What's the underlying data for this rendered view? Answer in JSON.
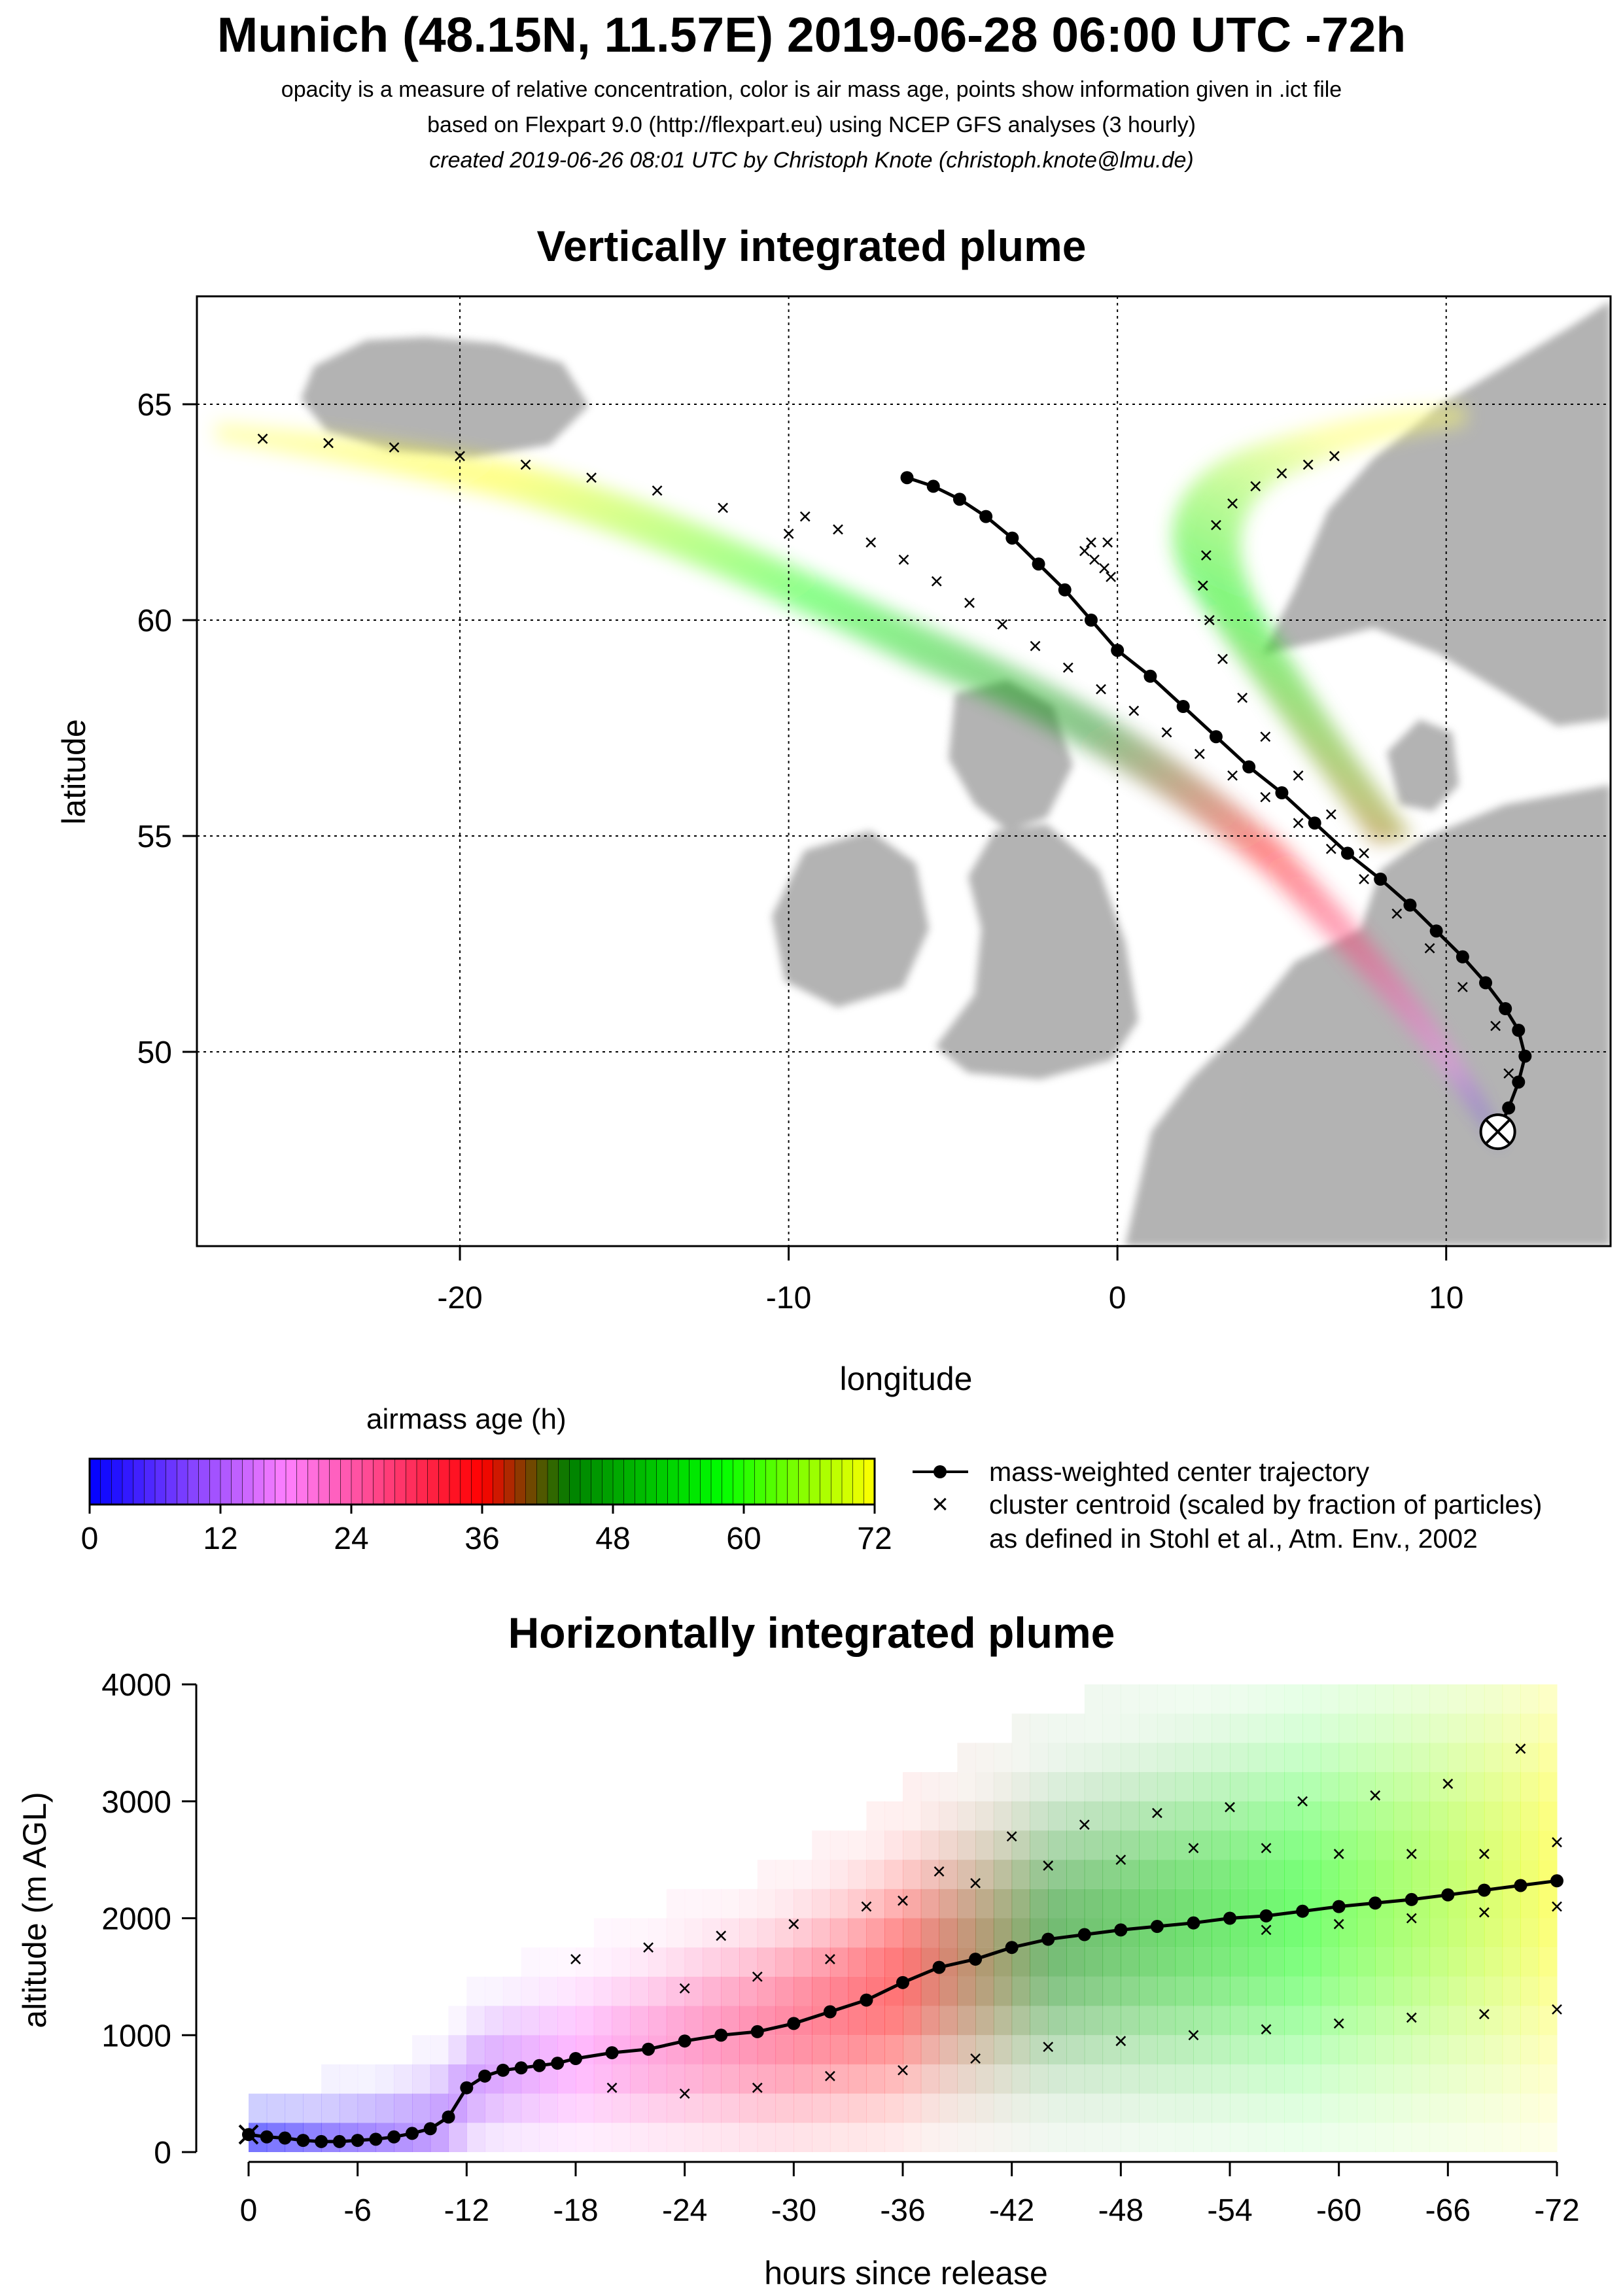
{
  "header": {
    "title": "Munich (48.15N, 11.57E) 2019-06-28 06:00 UTC -72h",
    "line1": "opacity is a measure of relative concentration, color is air mass age, points show information given in .ict file",
    "line2": "based on Flexpart 9.0 (http://flexpart.eu) using NCEP GFS analyses (3 hourly)",
    "line3": "created 2019-06-26 08:01 UTC by Christoph Knote (christoph.knote@lmu.de)"
  },
  "colors": {
    "land": "#9a9a9a",
    "sea": "#ffffff",
    "trajectory": "#000000",
    "colormap": [
      "#0000ff",
      "#ff80ff",
      "#ff0000",
      "#008000",
      "#00ff00",
      "#ffff00"
    ]
  },
  "legend": {
    "colorbar_title": "airmass age (h)",
    "colorbar_ticks": [
      "0",
      "12",
      "24",
      "36",
      "48",
      "60",
      "72"
    ],
    "colorbar_range": [
      0,
      72
    ],
    "line_label": "mass-weighted center trajectory",
    "cross_label": "cluster centroid (scaled by fraction of particles)",
    "cross_label2": "as defined in Stohl et al., Atm. Env., 2002"
  },
  "chart_data": [
    {
      "type": "scatter",
      "title": "Vertically integrated plume",
      "xlabel": "longitude",
      "ylabel": "latitude",
      "xlim": [
        -28,
        15
      ],
      "ylim": [
        45.5,
        67.5
      ],
      "xticks": [
        -20,
        -10,
        0,
        10
      ],
      "yticks": [
        50,
        55,
        60,
        65
      ],
      "grid": true,
      "release_point": {
        "lon": 11.57,
        "lat": 48.15
      },
      "center_trajectory": {
        "name": "mass-weighted center trajectory",
        "lon": [
          11.57,
          11.9,
          12.2,
          12.4,
          12.2,
          11.8,
          11.2,
          10.5,
          9.7,
          8.9,
          8.0,
          7.0,
          6.0,
          5.0,
          4.0,
          3.0,
          2.0,
          1.0,
          0.0,
          -0.8,
          -1.6,
          -2.4,
          -3.2,
          -4.0,
          -4.8,
          -5.6,
          -6.4
        ],
        "lat": [
          48.15,
          48.7,
          49.3,
          49.9,
          50.5,
          51.0,
          51.6,
          52.2,
          52.8,
          53.4,
          54.0,
          54.6,
          55.3,
          56.0,
          56.6,
          57.3,
          58.0,
          58.7,
          59.3,
          60.0,
          60.7,
          61.3,
          61.9,
          62.4,
          62.8,
          63.1,
          63.3
        ]
      },
      "cluster_centroids": [
        {
          "lon": [
            11.6,
            11.9,
            11.5,
            10.5,
            9.5,
            8.5,
            7.5,
            6.5,
            5.5,
            4.5,
            3.5,
            2.5,
            1.5,
            0.5,
            -0.5,
            -1.5,
            -2.5,
            -3.5,
            -4.5,
            -5.5,
            -6.5,
            -7.5,
            -8.5,
            -9.5
          ],
          "lat": [
            48.4,
            49.5,
            50.6,
            51.5,
            52.4,
            53.2,
            54.0,
            54.7,
            55.3,
            55.9,
            56.4,
            56.9,
            57.4,
            57.9,
            58.4,
            58.9,
            59.4,
            59.9,
            60.4,
            60.9,
            61.4,
            61.8,
            62.1,
            62.4
          ]
        },
        {
          "lon": [
            7.5,
            6.5,
            5.5,
            4.5,
            3.8,
            3.2,
            2.8,
            2.6,
            2.7,
            3.0,
            3.5,
            4.2,
            5.0,
            5.8,
            6.6
          ],
          "lat": [
            54.6,
            55.5,
            56.4,
            57.3,
            58.2,
            59.1,
            60.0,
            60.8,
            61.5,
            62.2,
            62.7,
            63.1,
            63.4,
            63.6,
            63.8
          ]
        },
        {
          "lon": [
            -0.2,
            -0.4,
            -0.7,
            -1.0,
            -0.8,
            -0.3
          ],
          "lat": [
            61.0,
            61.2,
            61.4,
            61.6,
            61.8,
            61.8
          ]
        },
        {
          "lon": [
            -10,
            -12,
            -14,
            -16,
            -18,
            -20,
            -22,
            -24,
            -26
          ],
          "lat": [
            62.0,
            62.6,
            63.0,
            63.3,
            63.6,
            63.8,
            64.0,
            64.1,
            64.2
          ]
        }
      ]
    },
    {
      "type": "scatter",
      "title": "Horizontally integrated plume",
      "xlabel": "hours since release",
      "ylabel": "altitude (m AGL)",
      "xlim": [
        0,
        -72
      ],
      "ylim": [
        0,
        4000
      ],
      "xticks": [
        "0",
        "-6",
        "-12",
        "-18",
        "-24",
        "-30",
        "-36",
        "-42",
        "-48",
        "-54",
        "-60",
        "-66",
        "-72"
      ],
      "yticks": [
        "0",
        "1000",
        "2000",
        "3000",
        "4000"
      ],
      "center_trajectory": {
        "hours": [
          0,
          -1,
          -2,
          -3,
          -4,
          -5,
          -6,
          -7,
          -8,
          -9,
          -10,
          -11,
          -12,
          -13,
          -14,
          -15,
          -16,
          -17,
          -18,
          -20,
          -22,
          -24,
          -26,
          -28,
          -30,
          -32,
          -34,
          -36,
          -38,
          -40,
          -42,
          -44,
          -46,
          -48,
          -50,
          -52,
          -54,
          -56,
          -58,
          -60,
          -62,
          -64,
          -66,
          -68,
          -70,
          -72
        ],
        "altitude": [
          150,
          130,
          120,
          100,
          90,
          90,
          100,
          110,
          130,
          160,
          200,
          300,
          550,
          650,
          700,
          720,
          740,
          760,
          800,
          850,
          880,
          950,
          1000,
          1030,
          1100,
          1200,
          1300,
          1450,
          1580,
          1650,
          1750,
          1820,
          1860,
          1900,
          1930,
          1960,
          2000,
          2020,
          2060,
          2100,
          2130,
          2160,
          2200,
          2240,
          2280,
          2320
        ]
      },
      "cluster_centroids": [
        {
          "hours": [
            -18,
            -22,
            -26,
            -30,
            -34,
            -38,
            -42,
            -46,
            -50,
            -54,
            -58,
            -62,
            -66,
            -70
          ],
          "altitude": [
            1650,
            1750,
            1850,
            1950,
            2100,
            2400,
            2700,
            2800,
            2900,
            2950,
            3000,
            3050,
            3150,
            3450
          ]
        },
        {
          "hours": [
            -24,
            -28,
            -32,
            -36,
            -40,
            -44,
            -48,
            -52,
            -56,
            -60,
            -64,
            -68,
            -72
          ],
          "altitude": [
            1400,
            1500,
            1650,
            2150,
            2300,
            2450,
            2500,
            2600,
            2600,
            2550,
            2550,
            2550,
            2650
          ]
        },
        {
          "hours": [
            -20,
            -24,
            -28,
            -32,
            -36,
            -40,
            -44,
            -48,
            -52,
            -56,
            -60,
            -64,
            -68,
            -72
          ],
          "altitude": [
            550,
            500,
            550,
            650,
            700,
            800,
            900,
            950,
            1000,
            1050,
            1100,
            1150,
            1180,
            1220
          ]
        },
        {
          "hours": [
            -56,
            -60,
            -64,
            -68,
            -72
          ],
          "altitude": [
            1900,
            1950,
            2000,
            2050,
            2100
          ]
        }
      ]
    }
  ]
}
